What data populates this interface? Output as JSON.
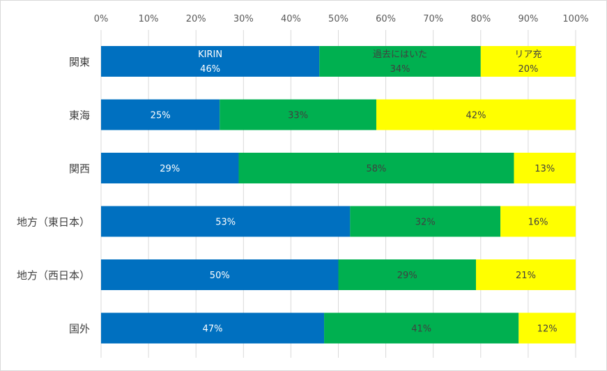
{
  "chart_data": {
    "type": "bar",
    "orientation": "horizontal",
    "stacked": "percent",
    "title": "",
    "xlabel": "",
    "ylabel": "",
    "xlim": [
      0,
      100
    ],
    "x_ticks": [
      "0%",
      "10%",
      "20%",
      "30%",
      "40%",
      "50%",
      "60%",
      "70%",
      "80%",
      "90%",
      "100%"
    ],
    "categories": [
      "関東",
      "東海",
      "関西",
      "地方（東日本）",
      "地方（西日本）",
      "国外"
    ],
    "series": [
      {
        "name": "KIRIN",
        "color": "#0070c0",
        "label_color": "#ffffff",
        "values": [
          46,
          25,
          29,
          53,
          50,
          47
        ]
      },
      {
        "name": "過去にはいた",
        "color": "#00b050",
        "label_color": "#404040",
        "values": [
          34,
          33,
          58,
          32,
          29,
          41
        ]
      },
      {
        "name": "リア充",
        "color": "#ffff00",
        "label_color": "#404040",
        "values": [
          20,
          42,
          13,
          16,
          21,
          12
        ]
      }
    ],
    "series_names_shown_in_first_row": true,
    "grid": true,
    "legend": "none"
  }
}
